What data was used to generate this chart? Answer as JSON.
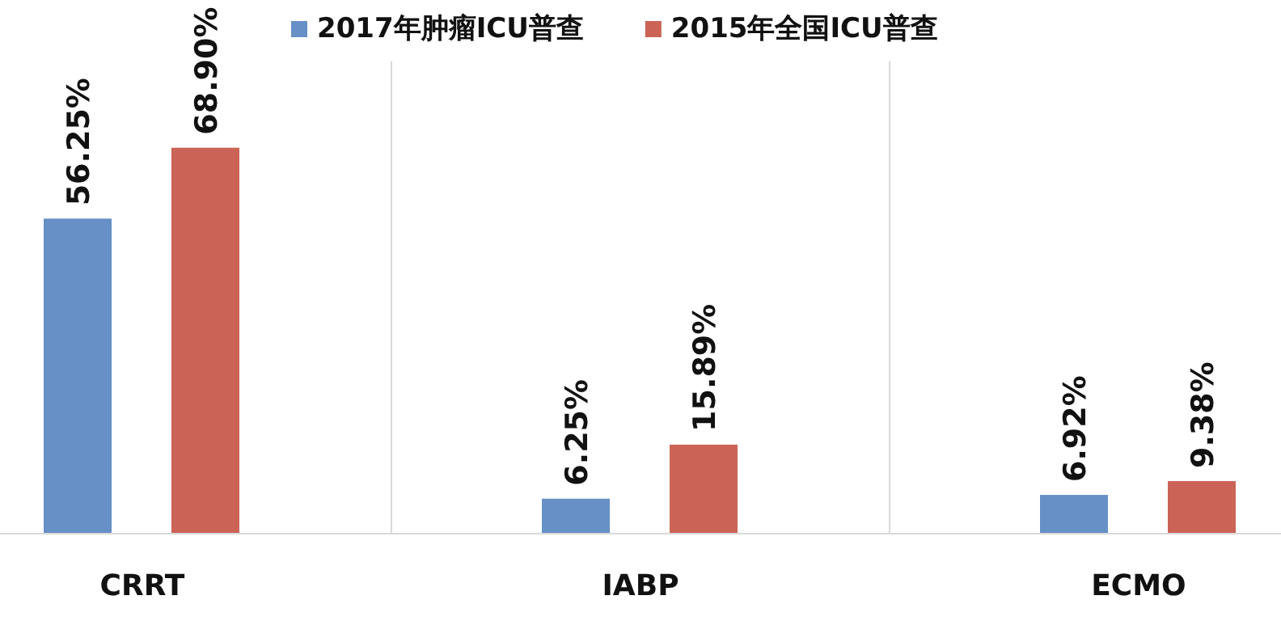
{
  "chart_data": {
    "type": "bar",
    "categories": [
      "CRRT",
      "IABP",
      "ECMO"
    ],
    "series": [
      {
        "name": "2017年肿瘤ICU普查",
        "color": "#6690c6",
        "values": [
          56.25,
          6.25,
          6.92
        ],
        "value_labels": [
          "56.25%",
          "6.25%",
          "6.92%"
        ]
      },
      {
        "name": "2015年全国ICU普查",
        "color": "#cb6356",
        "values": [
          68.9,
          15.89,
          9.38
        ],
        "value_labels": [
          "68.90%",
          "15.89%",
          "9.38%"
        ]
      }
    ],
    "grid": "x",
    "legend": "top"
  }
}
